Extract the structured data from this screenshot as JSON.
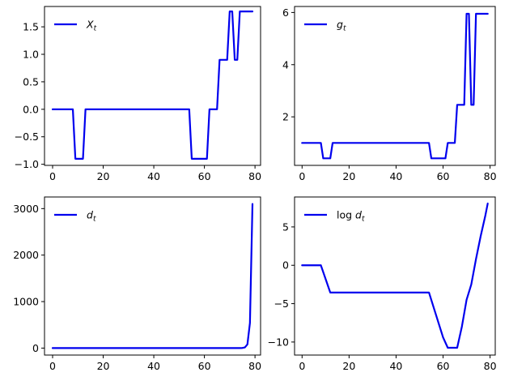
{
  "colors": {
    "series": "#0000ee",
    "axes": "#000000",
    "background": "#ffffff"
  },
  "chart_data": [
    {
      "type": "line",
      "legend": {
        "label": "X",
        "subscript": "t",
        "prefix": "",
        "placement": "top-left"
      },
      "series": [
        {
          "name": "X_t",
          "x": [
            0,
            8,
            9,
            11,
            12,
            13,
            54,
            55,
            60,
            61,
            62,
            65,
            66,
            68,
            69,
            70,
            71,
            72,
            73,
            74,
            75,
            76,
            77,
            79
          ],
          "y": [
            0,
            0,
            -0.9,
            -0.9,
            -0.9,
            0,
            0,
            -0.9,
            -0.9,
            -0.9,
            0,
            0,
            0.9,
            0.9,
            0.9,
            1.78,
            1.78,
            0.9,
            0.9,
            1.78,
            1.78,
            1.78,
            1.78,
            1.78
          ]
        }
      ],
      "xlim": [
        -3.2,
        82.2
      ],
      "ylim": [
        -1.02,
        1.87
      ],
      "xticks": [
        0,
        20,
        40,
        60,
        80
      ],
      "yticks": [
        -1.0,
        -0.5,
        0.0,
        0.5,
        1.0,
        1.5
      ],
      "xtick_labels": [
        "0",
        "20",
        "40",
        "60",
        "80"
      ],
      "ytick_labels": [
        "−1.0",
        "−0.5",
        "0.0",
        "0.5",
        "1.0",
        "1.5"
      ],
      "grid": false
    },
    {
      "type": "line",
      "legend": {
        "label": "g",
        "subscript": "t",
        "prefix": "",
        "placement": "top-left"
      },
      "series": [
        {
          "name": "g_t",
          "x": [
            0,
            8,
            9,
            11,
            12,
            13,
            54,
            55,
            60,
            61,
            62,
            65,
            66,
            68,
            69,
            70,
            71,
            72,
            73,
            74,
            75,
            76,
            77,
            79
          ],
          "y": [
            1,
            1,
            0.41,
            0.41,
            0.41,
            1,
            1,
            0.41,
            0.41,
            0.41,
            1,
            1,
            2.46,
            2.46,
            2.46,
            5.95,
            5.95,
            2.46,
            2.46,
            5.95,
            5.95,
            5.95,
            5.95,
            5.95
          ]
        }
      ],
      "xlim": [
        -3.2,
        82.2
      ],
      "ylim": [
        0.14,
        6.23
      ],
      "xticks": [
        0,
        20,
        40,
        60,
        80
      ],
      "yticks": [
        2,
        4,
        6
      ],
      "xtick_labels": [
        "0",
        "20",
        "40",
        "60",
        "80"
      ],
      "ytick_labels": [
        "2",
        "4",
        "6"
      ],
      "grid": false
    },
    {
      "type": "line",
      "legend": {
        "label": "d",
        "subscript": "t",
        "prefix": "",
        "placement": "top-left"
      },
      "series": [
        {
          "name": "d_t",
          "x": [
            0,
            8,
            12,
            54,
            60,
            64,
            66,
            68,
            70,
            72,
            74,
            75,
            76,
            77,
            78,
            79
          ],
          "y": [
            1,
            1,
            0.03,
            0.03,
            0.001,
            0.0001,
            0.0001,
            0.0003,
            0.002,
            0.01,
            0.5,
            3,
            15,
            80,
            540,
            3100
          ]
        }
      ],
      "xlim": [
        -3.2,
        82.2
      ],
      "ylim": [
        -150,
        3250
      ],
      "xticks": [
        0,
        20,
        40,
        60,
        80
      ],
      "yticks": [
        0,
        1000,
        2000,
        3000
      ],
      "xtick_labels": [
        "0",
        "20",
        "40",
        "60",
        "80"
      ],
      "ytick_labels": [
        "0",
        "1000",
        "2000",
        "3000"
      ],
      "grid": false
    },
    {
      "type": "line",
      "legend": {
        "label": "d",
        "subscript": "t",
        "prefix": "log ",
        "placement": "top-left"
      },
      "series": [
        {
          "name": "log d_t",
          "x": [
            0,
            8,
            12,
            54,
            60,
            62,
            64,
            66,
            68,
            70,
            72,
            74,
            76,
            78,
            79
          ],
          "y": [
            0,
            0,
            -3.55,
            -3.55,
            -9.4,
            -10.75,
            -10.75,
            -10.75,
            -8,
            -4.5,
            -2.5,
            0.8,
            3.8,
            6.5,
            8.05
          ]
        }
      ],
      "xlim": [
        -3.2,
        82.2
      ],
      "ylim": [
        -11.7,
        8.9
      ],
      "xticks": [
        0,
        20,
        40,
        60,
        80
      ],
      "yticks": [
        -10,
        -5,
        0,
        5
      ],
      "xtick_labels": [
        "0",
        "20",
        "40",
        "60",
        "80"
      ],
      "ytick_labels": [
        "−10",
        "−5",
        "0",
        "5"
      ],
      "grid": false
    }
  ]
}
